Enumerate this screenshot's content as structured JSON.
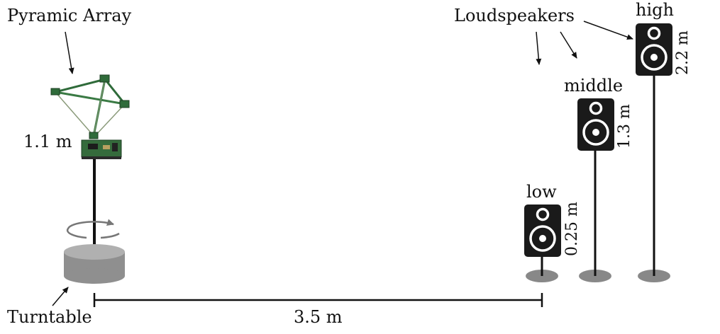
{
  "labels": {
    "array": "Pyramic Array",
    "loudspeakers": "Loudspeakers",
    "turntable": "Turntable",
    "array_height": "1.1 m",
    "distance": "3.5 m"
  },
  "speakers": {
    "low": {
      "name": "low",
      "height": "0.25 m"
    },
    "middle": {
      "name": "middle",
      "height": "1.3 m"
    },
    "high": {
      "name": "high",
      "height": "2.2 m"
    }
  },
  "colors": {
    "speaker_body": "#1a1a1a",
    "stand_base": "#888888",
    "turntable": "#8f8f8f",
    "pcb_green": "#2f6b3a"
  }
}
